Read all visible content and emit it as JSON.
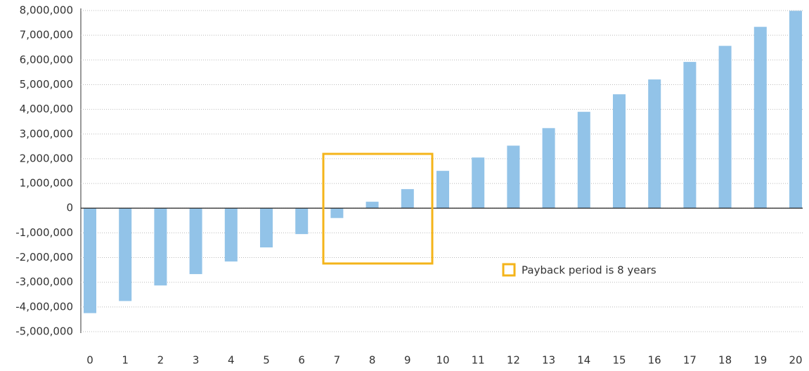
{
  "chart_data": {
    "type": "bar",
    "categories": [
      "0",
      "1",
      "2",
      "3",
      "4",
      "5",
      "6",
      "7",
      "8",
      "9",
      "10",
      "11",
      "12",
      "13",
      "14",
      "15",
      "16",
      "17",
      "18",
      "19",
      "20"
    ],
    "values": [
      -4250000,
      -3760000,
      -3130000,
      -2670000,
      -2160000,
      -1590000,
      -1050000,
      -400000,
      260000,
      770000,
      1510000,
      2050000,
      2530000,
      3240000,
      3900000,
      4610000,
      5210000,
      5920000,
      6570000,
      7340000,
      7990000
    ],
    "color": "#92c3e8",
    "ylim": [
      -5000000,
      8000000
    ],
    "yticks": [
      {
        "value": -5000000,
        "label": "-5,000,000"
      },
      {
        "value": -4000000,
        "label": "-4,000,000"
      },
      {
        "value": -3000000,
        "label": "-3,000,000"
      },
      {
        "value": -2000000,
        "label": "-2,000,000"
      },
      {
        "value": -1000000,
        "label": "-1,000,000"
      },
      0,
      {
        "value": 1000000,
        "label": "1,000,000"
      },
      {
        "value": 2000000,
        "label": "2,000,000"
      },
      {
        "value": 3000000,
        "label": "3,000,000"
      },
      {
        "value": 4000000,
        "label": "4,000,000"
      },
      {
        "value": 5000000,
        "label": "5,000,000"
      },
      {
        "value": 6000000,
        "label": "6,000,000"
      },
      {
        "value": 7000000,
        "label": "7,000,000"
      },
      {
        "value": 8000000,
        "label": "8,000,000"
      }
    ],
    "grid": true,
    "annotation": {
      "label": "Payback period is 8 years",
      "color": "#f4b41a"
    }
  }
}
